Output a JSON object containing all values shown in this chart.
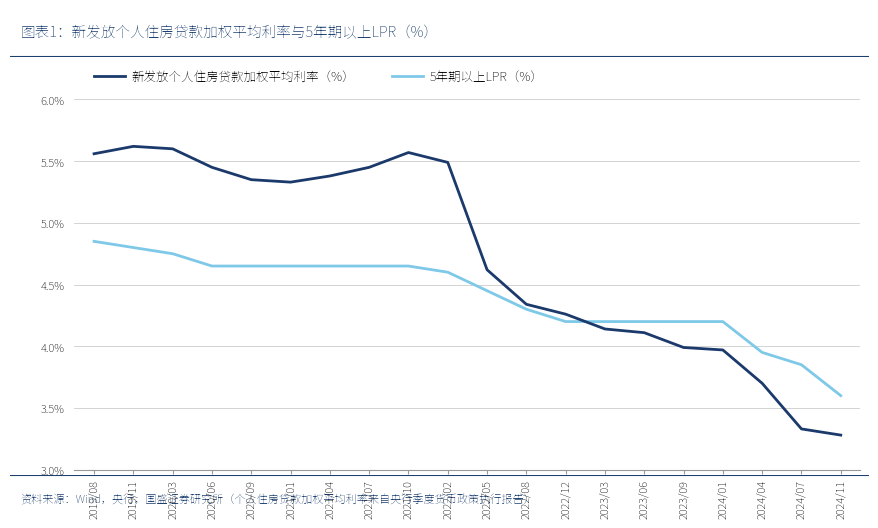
{
  "title": "图表1：新发放个人住房贷款加权平均利率与5年期以上LPR（%）",
  "footnote": "资料来源：Wind，央行，国盛证券研究所（个人住房贷款加权平均利率来自央行季度货币政策执行报告）",
  "legend1": "新发放个人住房贷款加权平均利率（%）",
  "legend2": "5年期以上LPR（%）",
  "bg_color": "#FFFFFF",
  "title_color": "#1B3F6E",
  "title_bg_color": "#C8DCF0",
  "footnote_color": "#1B3F6E",
  "footnote_bg_color": "#C8DCF0",
  "line1_color": "#1B3A6B",
  "line2_color": "#7EC8E8",
  "ylim": [
    3.0,
    6.3
  ],
  "yticks": [
    3.0,
    3.5,
    4.0,
    4.5,
    5.0,
    5.5,
    6.0
  ],
  "x_labels": [
    "2019/08",
    "2019/11",
    "2020/03",
    "2020/06",
    "2020/09",
    "2021/01",
    "2021/04",
    "2021/07",
    "2021/10",
    "2022/02",
    "2022/05",
    "2022/08",
    "2022/12",
    "2023/03",
    "2023/06",
    "2023/09",
    "2024/01",
    "2024/04",
    "2024/07",
    "2024/11"
  ],
  "line1_y": [
    5.56,
    5.62,
    5.6,
    5.45,
    5.35,
    5.33,
    5.38,
    5.45,
    5.57,
    5.49,
    4.62,
    4.34,
    4.26,
    4.14,
    4.11,
    3.99,
    3.97,
    3.7,
    3.33,
    3.28
  ],
  "line2_y": [
    4.85,
    4.8,
    4.75,
    4.65,
    4.65,
    4.65,
    4.65,
    4.65,
    4.65,
    4.6,
    4.45,
    4.3,
    4.2,
    4.2,
    4.2,
    4.2,
    4.2,
    3.95,
    3.85,
    3.6
  ],
  "title_fontsize": 10.5,
  "legend_fontsize": 9,
  "tick_fontsize": 8,
  "footnote_fontsize": 8
}
